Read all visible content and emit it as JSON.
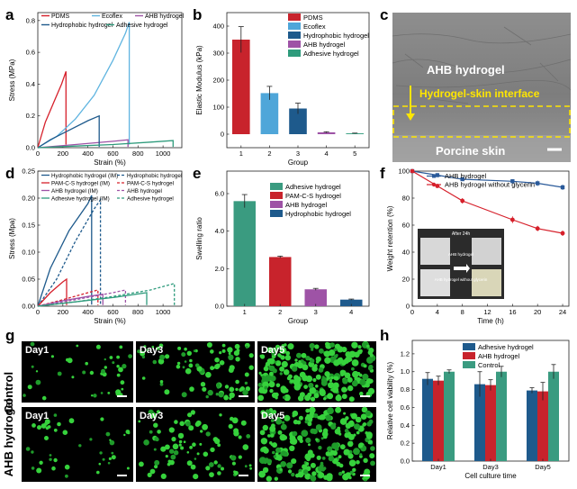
{
  "figure": {
    "panel_letters": [
      "a",
      "b",
      "c",
      "d",
      "e",
      "f",
      "g",
      "h"
    ],
    "colors": {
      "pdms": "#d6202b",
      "ecoflex": "#5fb4e0",
      "ahb": "#9e53a6",
      "hydrophobic": "#1e5a8c",
      "adhesive": "#2e9b7c",
      "pamcs": "#d6202b",
      "f_ahb": "#2a5a9a",
      "f_noglyc": "#d6202b",
      "h_control": "#2e9b7c"
    }
  },
  "chart_data": [
    {
      "id": "a",
      "type": "line",
      "xlabel": "Strain (%)",
      "ylabel": "Stress (MPa)",
      "xlim": [
        0,
        1150
      ],
      "ylim": [
        0,
        0.85
      ],
      "xticks": [
        0,
        200,
        400,
        600,
        800,
        1000
      ],
      "yticks": [
        0.0,
        0.2,
        0.4,
        0.6,
        0.8
      ],
      "ytick_labels": [
        "0.0",
        "0.2",
        "0.4",
        "0.6",
        "0.8"
      ],
      "legend": [
        "PDMS",
        "Ecoflex",
        "AHB hydrogel",
        "Hydrophobic hydrogel",
        "Adhesive hydrogel"
      ],
      "series": [
        {
          "name": "PDMS",
          "color": "#d6202b",
          "x": [
            0,
            60,
            130,
            190,
            225,
            225
          ],
          "y": [
            0,
            0.16,
            0.29,
            0.4,
            0.48,
            0.02
          ]
        },
        {
          "name": "Ecoflex",
          "color": "#5fb4e0",
          "x": [
            0,
            150,
            300,
            450,
            600,
            700,
            730,
            730
          ],
          "y": [
            0,
            0.07,
            0.18,
            0.33,
            0.55,
            0.72,
            0.79,
            0.02
          ]
        },
        {
          "name": "AHB hydrogel",
          "color": "#9e53a6",
          "x": [
            0,
            300,
            600,
            720,
            720
          ],
          "y": [
            0,
            0.02,
            0.04,
            0.05,
            0.005
          ]
        },
        {
          "name": "Hydrophobic hydrogel",
          "color": "#1e5a8c",
          "x": [
            0,
            100,
            250,
            400,
            490,
            490
          ],
          "y": [
            0,
            0.05,
            0.11,
            0.17,
            0.2,
            0.005
          ]
        },
        {
          "name": "Adhesive hydrogel",
          "color": "#2e9b7c",
          "x": [
            0,
            300,
            600,
            900,
            1080,
            1080
          ],
          "y": [
            0,
            0.01,
            0.02,
            0.035,
            0.045,
            0.005
          ]
        }
      ]
    },
    {
      "id": "b",
      "type": "bar",
      "xlabel": "Group",
      "ylabel": "Elastic Modulus (kPa)",
      "categories": [
        "1",
        "2",
        "3",
        "4",
        "5"
      ],
      "values": [
        350,
        152,
        95,
        7,
        3
      ],
      "errors": [
        48,
        25,
        20,
        2,
        1
      ],
      "colors": [
        "#c8232c",
        "#4fa6d9",
        "#1e5a8c",
        "#9e53a6",
        "#2e9b7c"
      ],
      "ylim": [
        -50,
        450
      ],
      "yticks": [
        0,
        100,
        200,
        300,
        400
      ],
      "legend": [
        "PDMS",
        "Ecoflex",
        "Hydrophobic hydrogel",
        "AHB hydrogel",
        "Adhesive hydrogel"
      ]
    },
    {
      "id": "d",
      "type": "line",
      "xlabel": "Strain (%)",
      "ylabel": "Stress (Mpa)",
      "xlim": [
        0,
        1150
      ],
      "ylim": [
        0,
        0.25
      ],
      "xticks": [
        0,
        200,
        400,
        600,
        800,
        1000
      ],
      "yticks": [
        0.0,
        0.05,
        0.1,
        0.15,
        0.2,
        0.25
      ],
      "ytick_labels": [
        "0.00",
        "0.05",
        "0.10",
        "0.15",
        "0.20",
        "0.25"
      ],
      "legend_left": [
        "Hydrophobic hydrogel (IM)",
        "PAM-C-S hydrogel (IM)",
        "AHB hydrogel (IM)",
        "Adhesive hydrogel (IM)"
      ],
      "legend_right": [
        "Hydrophobic hydrogel",
        "PAM-C-S hydrogel",
        "AHB hydrogel",
        "Adhesive hydrogel"
      ],
      "series": [
        {
          "name": "Hydrophobic hydrogel (IM)",
          "color": "#1e5a8c",
          "dash": false,
          "x": [
            0,
            100,
            250,
            400,
            430,
            430
          ],
          "y": [
            0,
            0.07,
            0.14,
            0.19,
            0.205,
            0.003
          ]
        },
        {
          "name": "Hydrophobic hydrogel",
          "color": "#1e5a8c",
          "dash": true,
          "x": [
            0,
            150,
            300,
            450,
            500,
            500
          ],
          "y": [
            0,
            0.05,
            0.12,
            0.18,
            0.197,
            0.003
          ]
        },
        {
          "name": "PAM-C-S hydrogel (IM)",
          "color": "#d6202b",
          "dash": false,
          "x": [
            0,
            100,
            200,
            230,
            230
          ],
          "y": [
            0,
            0.025,
            0.045,
            0.05,
            0.002
          ]
        },
        {
          "name": "PAM-C-S hydrogel",
          "color": "#d6202b",
          "dash": true,
          "x": [
            0,
            200,
            400,
            480,
            480
          ],
          "y": [
            0,
            0.012,
            0.025,
            0.03,
            0.002
          ]
        },
        {
          "name": "AHB hydrogel (IM)",
          "color": "#9e53a6",
          "dash": false,
          "x": [
            0,
            200,
            400,
            520,
            520
          ],
          "y": [
            0,
            0.01,
            0.018,
            0.022,
            0.002
          ]
        },
        {
          "name": "AHB hydrogel",
          "color": "#9e53a6",
          "dash": true,
          "x": [
            0,
            300,
            600,
            700,
            700
          ],
          "y": [
            0,
            0.012,
            0.025,
            0.03,
            0.002
          ]
        },
        {
          "name": "Adhesive hydrogel (IM)",
          "color": "#2e9b7c",
          "dash": false,
          "x": [
            0,
            300,
            600,
            870,
            870
          ],
          "y": [
            0,
            0.008,
            0.016,
            0.025,
            0.002
          ]
        },
        {
          "name": "Adhesive hydrogel",
          "color": "#2e9b7c",
          "dash": true,
          "x": [
            0,
            300,
            600,
            900,
            1090,
            1090
          ],
          "y": [
            0,
            0.008,
            0.018,
            0.03,
            0.042,
            0.002
          ]
        }
      ]
    },
    {
      "id": "e",
      "type": "bar",
      "xlabel": "Group",
      "ylabel": "Swelling ratio",
      "categories": [
        "1",
        "2",
        "3",
        "4"
      ],
      "values": [
        5.6,
        2.62,
        0.9,
        0.35
      ],
      "errors": [
        0.35,
        0.05,
        0.05,
        0.03
      ],
      "colors": [
        "#3a9b80",
        "#c8232c",
        "#9e53a6",
        "#1e5a8c"
      ],
      "ylim": [
        0,
        7.2
      ],
      "yticks": [
        0,
        2,
        4,
        6
      ],
      "ytick_labels": [
        "0.0",
        "2.0",
        "4.0",
        "6.0"
      ],
      "legend": [
        "Adhesive hydrogel",
        "PAM-C-S hydrogel",
        "AHB hydrogel",
        "Hydrophobic hydrogel"
      ]
    },
    {
      "id": "f",
      "type": "line",
      "xlabel": "Time (h)",
      "ylabel": "Weight retention (%)",
      "xlim": [
        0,
        25
      ],
      "ylim": [
        0,
        100
      ],
      "xticks": [
        0,
        4,
        8,
        12,
        16,
        20,
        24
      ],
      "yticks": [
        0,
        20,
        40,
        60,
        80,
        100
      ],
      "series": [
        {
          "name": "AHB hydrogel",
          "color": "#2a5a9a",
          "marker": "square",
          "x": [
            0,
            4,
            8,
            16,
            20,
            24
          ],
          "y": [
            100,
            97,
            94,
            92.5,
            91,
            88
          ],
          "err": [
            0,
            1.5,
            1.2,
            1.5,
            2,
            2
          ]
        },
        {
          "name": "AHB hydrogel without glycerin",
          "color": "#d6202b",
          "marker": "circle",
          "x": [
            0,
            4,
            8,
            16,
            20,
            24
          ],
          "y": [
            100,
            89,
            78,
            64,
            57.5,
            54
          ],
          "err": [
            0,
            1,
            2,
            2.5,
            2,
            2
          ]
        }
      ],
      "inset": {
        "title": "After 24h",
        "label_top": "AHB hydrogel",
        "label_bottom": "AHB hydrogel without glycerin"
      }
    },
    {
      "id": "h",
      "type": "bar",
      "xlabel": "Cell culture time",
      "ylabel": "Relative cell viability (%)",
      "categories": [
        "Day1",
        "Day3",
        "Day5"
      ],
      "series": [
        {
          "name": "Adhesive hydrogel",
          "color": "#1e5a8c",
          "values": [
            0.92,
            0.86,
            0.79
          ],
          "errors": [
            0.07,
            0.14,
            0.03
          ]
        },
        {
          "name": "AHB hydrogel",
          "color": "#c8232c",
          "values": [
            0.9,
            0.85,
            0.78
          ],
          "errors": [
            0.05,
            0.06,
            0.1
          ]
        },
        {
          "name": "Control",
          "color": "#3a9b80",
          "values": [
            1.0,
            1.0,
            1.0
          ],
          "errors": [
            0.02,
            0.06,
            0.08
          ]
        }
      ],
      "ylim": [
        0,
        1.35
      ],
      "yticks": [
        0,
        0.2,
        0.4,
        0.6,
        0.8,
        1.0,
        1.2
      ],
      "ytick_labels": [
        "0.0",
        "0.2",
        "0.4",
        "0.6",
        "0.8",
        "1.0",
        "1.2"
      ],
      "legend": [
        "Adhesive hydrogel",
        "AHB hydrogel",
        "Control"
      ]
    }
  ],
  "panel_c": {
    "label_hydrogel": "AHB hydrogel",
    "label_interface": "Hydrogel-skin interface",
    "label_skin": "Porcine skin"
  },
  "panel_g": {
    "row_labels": [
      "Control",
      "AHB hydrogel"
    ],
    "day_labels": [
      "Day1",
      "Day3",
      "Day5"
    ]
  }
}
